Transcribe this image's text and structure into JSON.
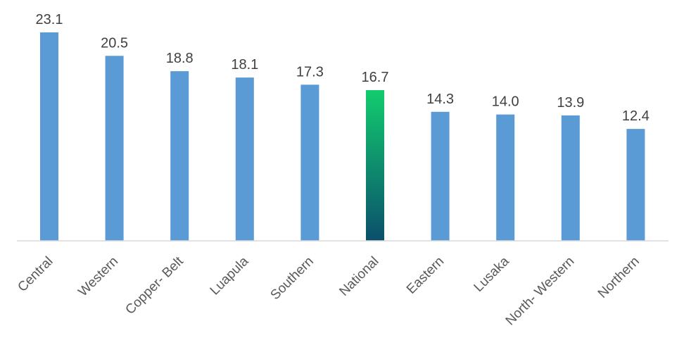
{
  "chart_data": {
    "type": "bar",
    "title": "",
    "xlabel": "",
    "ylabel": "",
    "ylim": [
      0,
      23.1
    ],
    "grid": false,
    "legend": "none",
    "categories": [
      "Central",
      "Western",
      "Copper- Belt",
      "Luapula",
      "Southern",
      "National",
      "Eastern",
      "Lusaka",
      "North- Western",
      "Northern"
    ],
    "values": [
      23.1,
      20.5,
      18.8,
      18.1,
      17.3,
      16.7,
      14.3,
      14.0,
      13.9,
      12.4
    ],
    "value_labels": [
      "23.1",
      "20.5",
      "18.8",
      "18.1",
      "17.3",
      "16.7",
      "14.3",
      "14.0",
      "13.9",
      "12.4"
    ],
    "highlight_category": "National",
    "colors": {
      "bar": "#5b9bd5",
      "highlight_top": "#12cc6e",
      "highlight_bottom": "#0b4f6c",
      "axis": "#d9d9d9",
      "label_text": "#404040",
      "tick_text": "#595959"
    }
  }
}
